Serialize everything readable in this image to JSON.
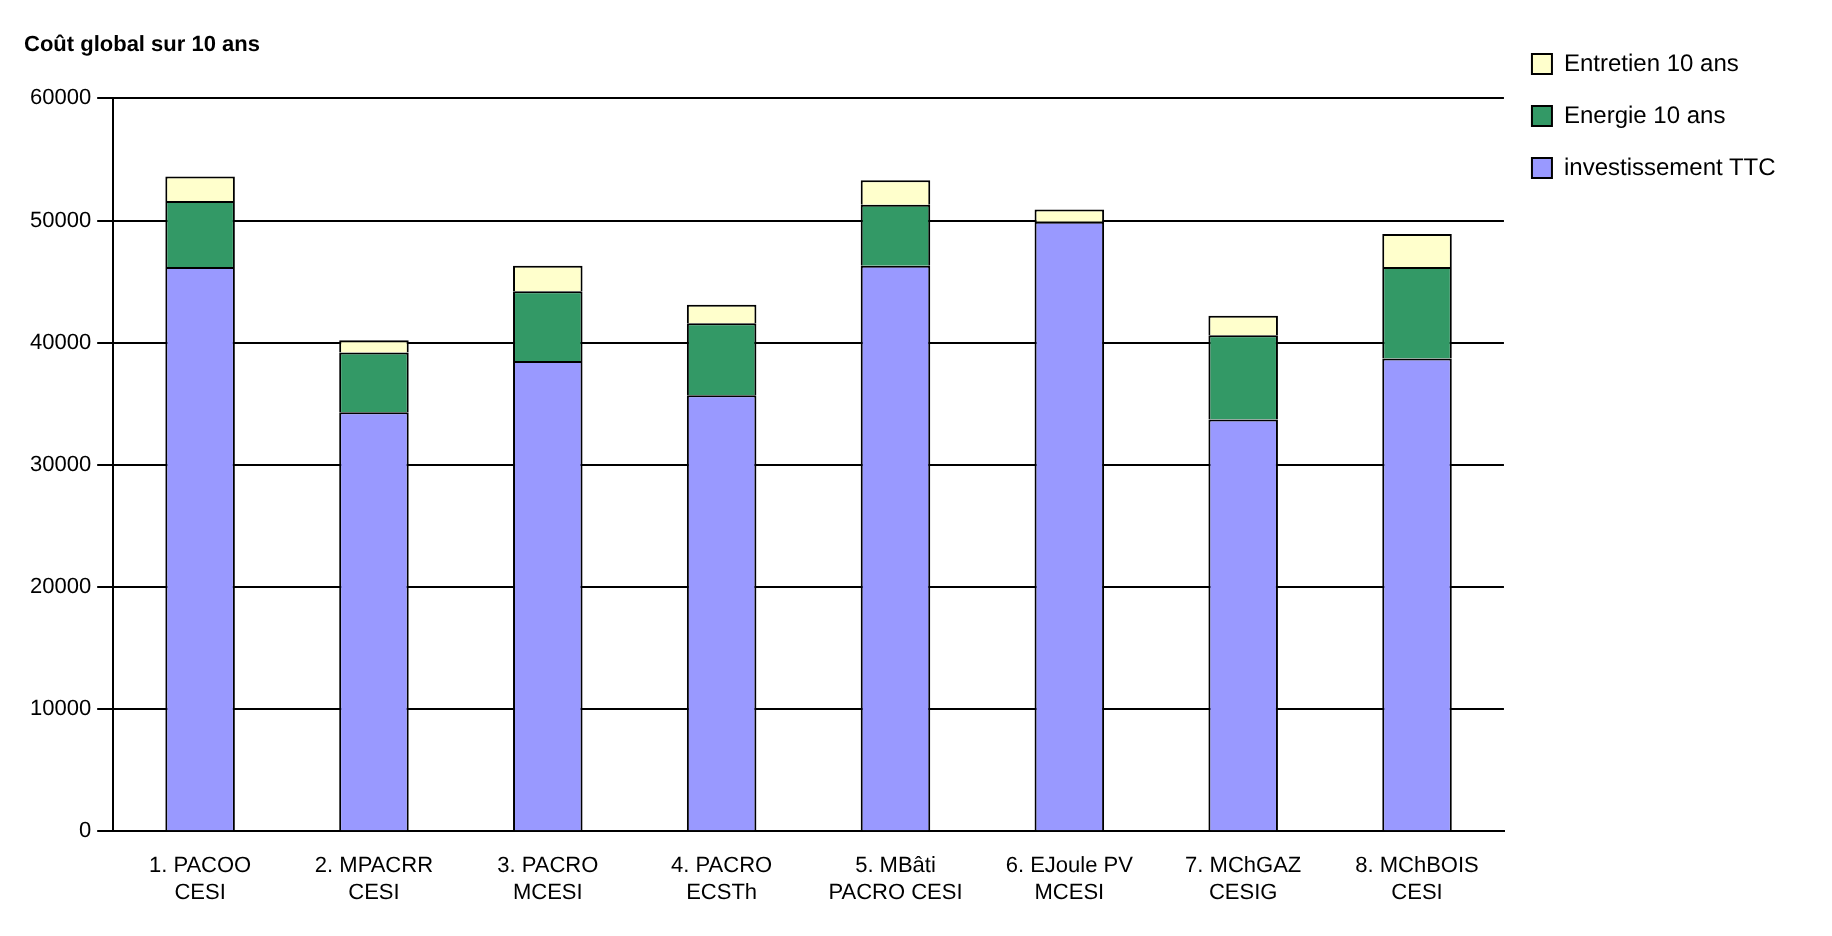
{
  "chart_data": {
    "type": "bar",
    "title": "Coût global sur 10 ans",
    "stacked": true,
    "categories": [
      "1. PACOO CESI",
      "2. MPACRR CESI",
      "3. PACRO MCESI",
      "4. PACRO ECSTh",
      "5. MBâti PACRO CESI",
      "6. EJoule PV MCESI",
      "7. MChGAZ CESIG",
      "8. MChBOIS CESI"
    ],
    "series": [
      {
        "name": "investissement TTC",
        "color": "#9999ff",
        "values": [
          46200,
          34300,
          38500,
          35700,
          46300,
          49900,
          33700,
          38700
        ]
      },
      {
        "name": "Energie 10 ans",
        "color": "#339966",
        "values": [
          5400,
          4900,
          5700,
          5900,
          5000,
          0,
          6900,
          7500
        ]
      },
      {
        "name": "Entretien 10 ans",
        "color": "#ffffcc",
        "values": [
          2000,
          1000,
          2100,
          1500,
          2000,
          1000,
          1600,
          2700
        ]
      }
    ],
    "ylim": [
      0,
      60000
    ],
    "yticks": [
      0,
      10000,
      20000,
      30000,
      40000,
      50000,
      60000
    ],
    "grid": "y",
    "legend": "top right"
  }
}
